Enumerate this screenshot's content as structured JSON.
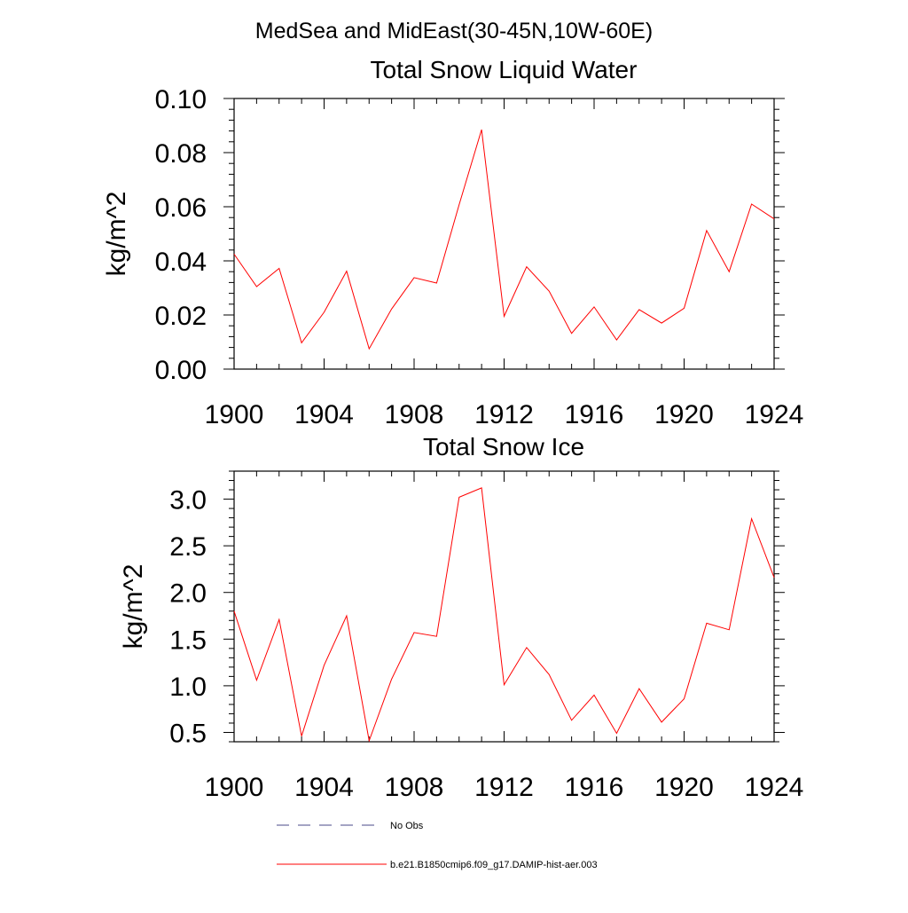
{
  "figure_title": "MedSea and MidEast(30-45N,10W-60E)",
  "colors": {
    "model": "#ff0000",
    "obs": "#4a4a8a",
    "axis": "#000000"
  },
  "legend": {
    "obs_label": "No Obs",
    "model_label": "b.e21.B1850cmip6.f09_g17.DAMIP-hist-aer.003"
  },
  "chart_data": [
    {
      "type": "line",
      "title": "Total Snow Liquid Water",
      "xlabel": "",
      "ylabel": "kg/m^2",
      "xlim": [
        1900,
        1924
      ],
      "ylim": [
        0,
        0.1
      ],
      "xticks": [
        1900,
        1904,
        1908,
        1912,
        1916,
        1920,
        1924
      ],
      "xtick_labels": [
        "1900",
        "1904",
        "1908",
        "1912",
        "1916",
        "1920",
        "1924"
      ],
      "yticks": [
        0,
        0.02,
        0.04,
        0.06,
        0.08,
        0.1
      ],
      "ytick_labels": [
        "0.00",
        "0.02",
        "0.04",
        "0.06",
        "0.08",
        "0.10"
      ],
      "x": [
        1900,
        1901,
        1902,
        1903,
        1904,
        1905,
        1906,
        1907,
        1908,
        1909,
        1910,
        1911,
        1912,
        1913,
        1914,
        1915,
        1916,
        1917,
        1918,
        1919,
        1920,
        1921,
        1922,
        1923,
        1924
      ],
      "series": [
        {
          "name": "b.e21.B1850cmip6.f09_g17.DAMIP-hist-aer.003",
          "values": [
            0.0425,
            0.0305,
            0.0372,
            0.0097,
            0.021,
            0.0362,
            0.0075,
            0.0222,
            0.0338,
            0.0318,
            0.0608,
            0.0885,
            0.0195,
            0.0378,
            0.0288,
            0.0132,
            0.023,
            0.0108,
            0.022,
            0.017,
            0.0225,
            0.0512,
            0.036,
            0.061,
            0.0555
          ]
        }
      ],
      "grid": false,
      "legend_position": "bottom"
    },
    {
      "type": "line",
      "title": "Total Snow Ice",
      "xlabel": "",
      "ylabel": "kg/m^2",
      "xlim": [
        1900,
        1924
      ],
      "ylim": [
        0.4,
        3.3
      ],
      "xticks": [
        1900,
        1904,
        1908,
        1912,
        1916,
        1920,
        1924
      ],
      "xtick_labels": [
        "1900",
        "1904",
        "1908",
        "1912",
        "1916",
        "1920",
        "1924"
      ],
      "yticks": [
        0.5,
        1.0,
        1.5,
        2.0,
        2.5,
        3.0
      ],
      "ytick_labels": [
        "0.5",
        "1.0",
        "1.5",
        "2.0",
        "2.5",
        "3.0"
      ],
      "x": [
        1900,
        1901,
        1902,
        1903,
        1904,
        1905,
        1906,
        1907,
        1908,
        1909,
        1910,
        1911,
        1912,
        1913,
        1914,
        1915,
        1916,
        1917,
        1918,
        1919,
        1920,
        1921,
        1922,
        1923,
        1924
      ],
      "series": [
        {
          "name": "b.e21.B1850cmip6.f09_g17.DAMIP-hist-aer.003",
          "values": [
            1.8,
            1.06,
            1.71,
            0.46,
            1.22,
            1.75,
            0.41,
            1.07,
            1.57,
            1.53,
            3.02,
            3.12,
            1.01,
            1.41,
            1.12,
            0.63,
            0.9,
            0.49,
            0.97,
            0.61,
            0.86,
            1.67,
            1.6,
            2.79,
            2.16
          ]
        }
      ],
      "grid": false,
      "legend_position": "bottom"
    }
  ]
}
